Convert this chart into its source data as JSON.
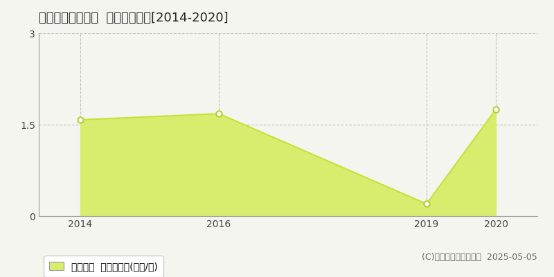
{
  "title": "多気郡多気町土羽  土地価格推移[2014-2020]",
  "years": [
    2014,
    2016,
    2019,
    2020
  ],
  "values": [
    1.58,
    1.68,
    0.2,
    1.75
  ],
  "ylim": [
    0,
    3
  ],
  "yticks": [
    0,
    1.5,
    3
  ],
  "xlim": [
    2013.4,
    2020.6
  ],
  "xticks": [
    2014,
    2016,
    2019,
    2020
  ],
  "line_color": "#c8e03a",
  "fill_color": "#d8ed6e",
  "marker_color": "#ffffff",
  "marker_edge_color": "#b8cc30",
  "grid_color": "#bbbbbb",
  "bg_color": "#f5f5f0",
  "plot_bg_color": "#f5f5f0",
  "legend_label": "土地価格  平均坪単価(万円/坪)",
  "copyright": "(C)土地価格ドットコム  2025-05-05",
  "title_fontsize": 13,
  "legend_fontsize": 10,
  "tick_fontsize": 10,
  "copyright_fontsize": 9
}
